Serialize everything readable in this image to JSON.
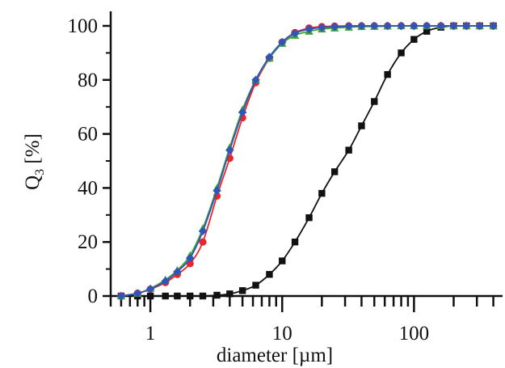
{
  "chart_data": {
    "type": "line",
    "xlabel": "diameter [µm]",
    "ylabel_main": "Q",
    "ylabel_sub": "3",
    "ylabel_unit": "[%]",
    "xscale": "log",
    "xlim": [
      0.5,
      470
    ],
    "ylim": [
      0,
      100
    ],
    "x_ticks": [
      1,
      10,
      100
    ],
    "x_tick_labels": [
      "1",
      "10",
      "100"
    ],
    "y_ticks": [
      0,
      20,
      40,
      60,
      80,
      100
    ],
    "y_tick_labels": [
      "0",
      "20",
      "40",
      "60",
      "80",
      "100"
    ],
    "grid": false,
    "series": [
      {
        "color": "#111111",
        "marker": "square",
        "x": [
          0.6,
          0.8,
          1.0,
          1.3,
          1.6,
          2.0,
          2.5,
          3.2,
          4.0,
          5.0,
          6.3,
          8.0,
          10.0,
          12.5,
          16.0,
          20.0,
          25.0,
          32.0,
          40.0,
          50.0,
          63.0,
          80.0,
          100.0,
          125.0,
          160.0,
          200.0,
          250.0,
          315.0,
          400.0
        ],
        "y": [
          0,
          0,
          0,
          0,
          0,
          0,
          0,
          0.3,
          0.8,
          2,
          4,
          8,
          13,
          20,
          29,
          38,
          46,
          54,
          63,
          72,
          82,
          90,
          95,
          98,
          99.5,
          100,
          100,
          100,
          100
        ]
      },
      {
        "color": "#e8262b",
        "marker": "circle",
        "x": [
          0.6,
          0.8,
          1.0,
          1.3,
          1.6,
          2.0,
          2.5,
          3.2,
          4.0,
          5.0,
          6.3,
          8.0,
          10.0,
          12.5,
          16.0,
          20.0,
          25.0,
          32.0,
          40.0,
          50.0,
          63.0,
          80.0,
          100.0,
          125.0,
          160.0,
          200.0,
          250.0,
          315.0,
          400.0
        ],
        "y": [
          0,
          1,
          2.5,
          5,
          8,
          12,
          20,
          37,
          51,
          66,
          79,
          88,
          94,
          97.5,
          99.2,
          99.7,
          99.9,
          100,
          100,
          100,
          100,
          100,
          100,
          100,
          100,
          100,
          100,
          100,
          100
        ]
      },
      {
        "color": "#3fa23a",
        "marker": "triangle",
        "x": [
          0.6,
          0.8,
          1.0,
          1.3,
          1.6,
          2.0,
          2.5,
          3.2,
          4.0,
          5.0,
          6.3,
          8.0,
          10.0,
          12.5,
          16.0,
          20.0,
          25.0,
          32.0,
          40.0,
          50.0,
          63.0,
          80.0,
          100.0,
          125.0,
          160.0,
          200.0,
          250.0,
          315.0,
          400.0
        ],
        "y": [
          0,
          1,
          2.8,
          6,
          9.5,
          15,
          25,
          40,
          55,
          69,
          80,
          88,
          93.5,
          96.5,
          98,
          98.8,
          99.2,
          99.5,
          99.7,
          99.8,
          99.9,
          100,
          100,
          100,
          100,
          100,
          100,
          100,
          100
        ]
      },
      {
        "color": "#2f55b8",
        "marker": "diamond",
        "x": [
          0.6,
          0.8,
          1.0,
          1.3,
          1.6,
          2.0,
          2.5,
          3.2,
          4.0,
          5.0,
          6.3,
          8.0,
          10.0,
          12.5,
          16.0,
          20.0,
          25.0,
          32.0,
          40.0,
          50.0,
          63.0,
          80.0,
          100.0,
          125.0,
          160.0,
          200.0,
          250.0,
          315.0,
          400.0
        ],
        "y": [
          0,
          1,
          2.6,
          5.5,
          9,
          14,
          24,
          39,
          54,
          68,
          80,
          88.5,
          94,
          97.3,
          98.8,
          99.4,
          99.7,
          99.9,
          100,
          100,
          100,
          100,
          100,
          100,
          100,
          100,
          100,
          100,
          100
        ]
      }
    ]
  }
}
